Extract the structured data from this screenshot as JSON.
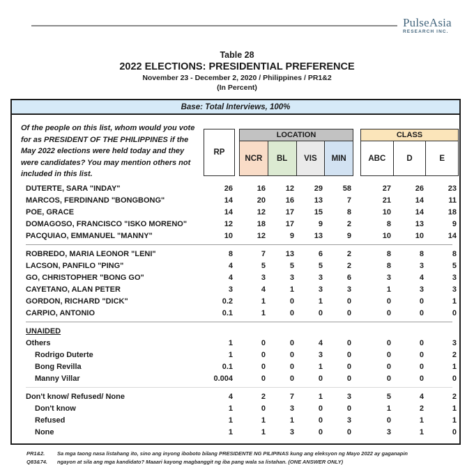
{
  "logo": {
    "name": "PulseAsia",
    "subtitle": "RESEARCH INC."
  },
  "title": {
    "table_no": "Table 28",
    "main": "2022 ELECTIONS: PRESIDENTIAL PREFERENCE",
    "subtitle": "November 23 - December 2, 2020 / Philippines / PR1&2",
    "unit": "(In Percent)"
  },
  "base_bar": "Base: Total Interviews, 100%",
  "question": "Of the people on this list, whom would you vote for as PRESIDENT OF THE PHILIPPINES if the May 2022 elections were held today and they were candidates? You may mention others not included in this list.",
  "columns": {
    "rp": "RP",
    "location": {
      "label": "LOCATION",
      "cols": [
        "NCR",
        "BL",
        "VIS",
        "MIN"
      ]
    },
    "class": {
      "label": "CLASS",
      "cols": [
        "ABC",
        "D",
        "E"
      ]
    }
  },
  "colors": {
    "base_bar_bg": "#d6eaf8",
    "location_head_bg": "#c2c2c2",
    "ncr_bg": "#f9dcc7",
    "bl_bg": "#dcead2",
    "vis_bg": "#eaeaea",
    "min_bg": "#d2e2f2",
    "class_head_bg": "#fbe5ba",
    "logo_color": "#45677e"
  },
  "sections": [
    {
      "rows": [
        {
          "label": "DUTERTE, SARA \"INDAY\"",
          "values": [
            "26",
            "16",
            "12",
            "29",
            "58",
            "27",
            "26",
            "23"
          ]
        },
        {
          "label": "MARCOS, FERDINAND \"BONGBONG\"",
          "values": [
            "14",
            "20",
            "16",
            "13",
            "7",
            "21",
            "14",
            "11"
          ]
        },
        {
          "label": "POE, GRACE",
          "values": [
            "14",
            "12",
            "17",
            "15",
            "8",
            "10",
            "14",
            "18"
          ]
        },
        {
          "label": "DOMAGOSO, FRANCISCO \"ISKO MORENO\"",
          "values": [
            "12",
            "18",
            "17",
            "9",
            "2",
            "8",
            "13",
            "9"
          ]
        },
        {
          "label": "PACQUIAO, EMMANUEL \"MANNY\"",
          "values": [
            "10",
            "12",
            "9",
            "13",
            "9",
            "10",
            "10",
            "14"
          ]
        }
      ]
    },
    {
      "divider_before": "normal",
      "rows": [
        {
          "label": "ROBREDO, MARIA LEONOR \"LENI\"",
          "values": [
            "8",
            "7",
            "13",
            "6",
            "2",
            "8",
            "8",
            "8"
          ]
        },
        {
          "label": "LACSON, PANFILO \"PING\"",
          "values": [
            "4",
            "5",
            "5",
            "5",
            "2",
            "8",
            "3",
            "5"
          ]
        },
        {
          "label": "GO, CHRISTOPHER \"BONG GO\"",
          "values": [
            "4",
            "3",
            "3",
            "3",
            "6",
            "3",
            "4",
            "3"
          ]
        },
        {
          "label": "CAYETANO, ALAN PETER",
          "values": [
            "3",
            "4",
            "1",
            "3",
            "3",
            "1",
            "3",
            "3"
          ]
        },
        {
          "label": "GORDON, RICHARD \"DICK\"",
          "values": [
            "0.2",
            "1",
            "0",
            "1",
            "0",
            "0",
            "0",
            "1"
          ]
        },
        {
          "label": "CARPIO, ANTONIO",
          "values": [
            "0.1",
            "1",
            "0",
            "0",
            "0",
            "0",
            "0",
            "0"
          ]
        }
      ]
    },
    {
      "divider_before": "normal",
      "heading": "UNAIDED",
      "rows": [
        {
          "label": "Others",
          "values": [
            "1",
            "0",
            "0",
            "4",
            "0",
            "0",
            "0",
            "3"
          ]
        },
        {
          "label": "Rodrigo Duterte",
          "indent": true,
          "values": [
            "1",
            "0",
            "0",
            "3",
            "0",
            "0",
            "0",
            "2"
          ]
        },
        {
          "label": "Bong Revilla",
          "indent": true,
          "values": [
            "0.1",
            "0",
            "0",
            "1",
            "0",
            "0",
            "0",
            "1"
          ]
        },
        {
          "label": "Manny Villar",
          "indent": true,
          "values": [
            "0.004",
            "0",
            "0",
            "0",
            "0",
            "0",
            "0",
            "0"
          ]
        }
      ]
    },
    {
      "divider_before": "light",
      "rows": [
        {
          "label": "Don't know/ Refused/ None",
          "values": [
            "4",
            "2",
            "7",
            "1",
            "3",
            "5",
            "4",
            "2"
          ]
        },
        {
          "label": "Don't know",
          "indent": true,
          "values": [
            "1",
            "0",
            "3",
            "0",
            "0",
            "1",
            "2",
            "1"
          ]
        },
        {
          "label": "Refused",
          "indent": true,
          "values": [
            "1",
            "1",
            "1",
            "0",
            "3",
            "0",
            "1",
            "1"
          ]
        },
        {
          "label": "None",
          "indent": true,
          "values": [
            "1",
            "1",
            "3",
            "0",
            "0",
            "3",
            "1",
            "0"
          ]
        }
      ]
    }
  ],
  "footnotes": [
    {
      "label": "PR1&2.",
      "text": "Sa mga taong nasa listahang ito, sino ang inyong iboboto bilang  PRESIDENTE NG PILIPINAS kung ang eleksyon ng Mayo 2022 ay gaganapin"
    },
    {
      "label": "Q83&74.",
      "text": "ngayon at sila ang mga kandidato?  Maaari kayong magbanggit ng iba pang wala sa listahan. (ONE ANSWER ONLY)"
    }
  ]
}
